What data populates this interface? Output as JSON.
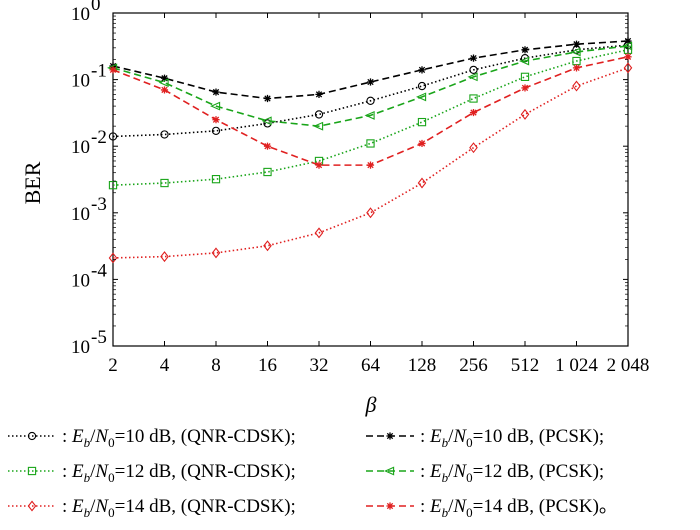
{
  "chart_data": {
    "type": "line",
    "xscale": "log2",
    "yscale": "log",
    "xlabel": "β",
    "ylabel": "BER",
    "xlim": [
      2,
      2048
    ],
    "ylim": [
      1e-05,
      1
    ],
    "grid": false,
    "x": [
      2,
      4,
      8,
      16,
      32,
      64,
      128,
      256,
      512,
      1024,
      2048
    ],
    "x_tick_labels": [
      "2",
      "4",
      "8",
      "16",
      "32",
      "64",
      "128",
      "256",
      "512",
      "1 024",
      "2 048"
    ],
    "y_ticks": [
      {
        "value": 1,
        "base": "10",
        "exp": "0"
      },
      {
        "value": 0.1,
        "base": "10",
        "exp": "-1"
      },
      {
        "value": 0.01,
        "base": "10",
        "exp": "-2"
      },
      {
        "value": 0.001,
        "base": "10",
        "exp": "-3"
      },
      {
        "value": 0.0001,
        "base": "10",
        "exp": "-4"
      },
      {
        "value": 1e-05,
        "base": "10",
        "exp": "-5"
      }
    ],
    "series": [
      {
        "name": ": E_b/N_0=10 dB, (QNR-CDSK);",
        "color": "#000000",
        "dash": "dotted",
        "marker": "circle",
        "values": [
          0.014,
          0.015,
          0.017,
          0.022,
          0.03,
          0.048,
          0.08,
          0.14,
          0.21,
          0.28,
          0.33
        ]
      },
      {
        "name": ": E_b/N_0=10 dB, (PCSK);",
        "color": "#000000",
        "dash": "dashed",
        "marker": "star",
        "values": [
          0.16,
          0.105,
          0.065,
          0.052,
          0.06,
          0.092,
          0.14,
          0.21,
          0.28,
          0.34,
          0.38
        ]
      },
      {
        "name": ": E_b/N_0=12 dB, (QNR-CDSK);",
        "color": "#1aa51a",
        "dash": "dotted",
        "marker": "square",
        "values": [
          0.0026,
          0.0028,
          0.0032,
          0.0041,
          0.006,
          0.011,
          0.023,
          0.052,
          0.11,
          0.19,
          0.28
        ]
      },
      {
        "name": ": E_b/N_0=12 dB, (PCSK);",
        "color": "#1aa51a",
        "dash": "dashed",
        "marker": "triangle-left",
        "values": [
          0.15,
          0.09,
          0.04,
          0.024,
          0.02,
          0.029,
          0.055,
          0.11,
          0.19,
          0.26,
          0.32
        ]
      },
      {
        "name": ": E_b/N_0=14 dB, (QNR-CDSK);",
        "color": "#e02020",
        "dash": "dotted",
        "marker": "diamond",
        "values": [
          0.00021,
          0.00022,
          0.00025,
          0.00032,
          0.0005,
          0.001,
          0.0028,
          0.0095,
          0.03,
          0.08,
          0.15
        ]
      },
      {
        "name": ": E_b/N_0=14 dB, (PCSK)。",
        "color": "#e02020",
        "dash": "dashed",
        "marker": "star",
        "values": [
          0.14,
          0.07,
          0.025,
          0.01,
          0.0052,
          0.0052,
          0.011,
          0.032,
          0.075,
          0.15,
          0.22
        ]
      }
    ],
    "legend": [
      {
        "series": 0,
        "sep": ": ",
        "E": "E",
        "b": "b",
        "N": "N",
        "zero": "0",
        "rest": "=10 dB, (QNR-CDSK);"
      },
      {
        "series": 1,
        "sep": ": ",
        "E": "E",
        "b": "b",
        "N": "N",
        "zero": "0",
        "rest": "=10 dB, (PCSK);"
      },
      {
        "series": 2,
        "sep": ": ",
        "E": "E",
        "b": "b",
        "N": "N",
        "zero": "0",
        "rest": "=12 dB, (QNR-CDSK);"
      },
      {
        "series": 3,
        "sep": ": ",
        "E": "E",
        "b": "b",
        "N": "N",
        "zero": "0",
        "rest": "=12 dB, (PCSK);"
      },
      {
        "series": 4,
        "sep": ": ",
        "E": "E",
        "b": "b",
        "N": "N",
        "zero": "0",
        "rest": "=14 dB, (QNR-CDSK);"
      },
      {
        "series": 5,
        "sep": ": ",
        "E": "E",
        "b": "b",
        "N": "N",
        "zero": "0",
        "rest": "=14 dB, (PCSK)。"
      }
    ],
    "legend_placement": "below"
  }
}
